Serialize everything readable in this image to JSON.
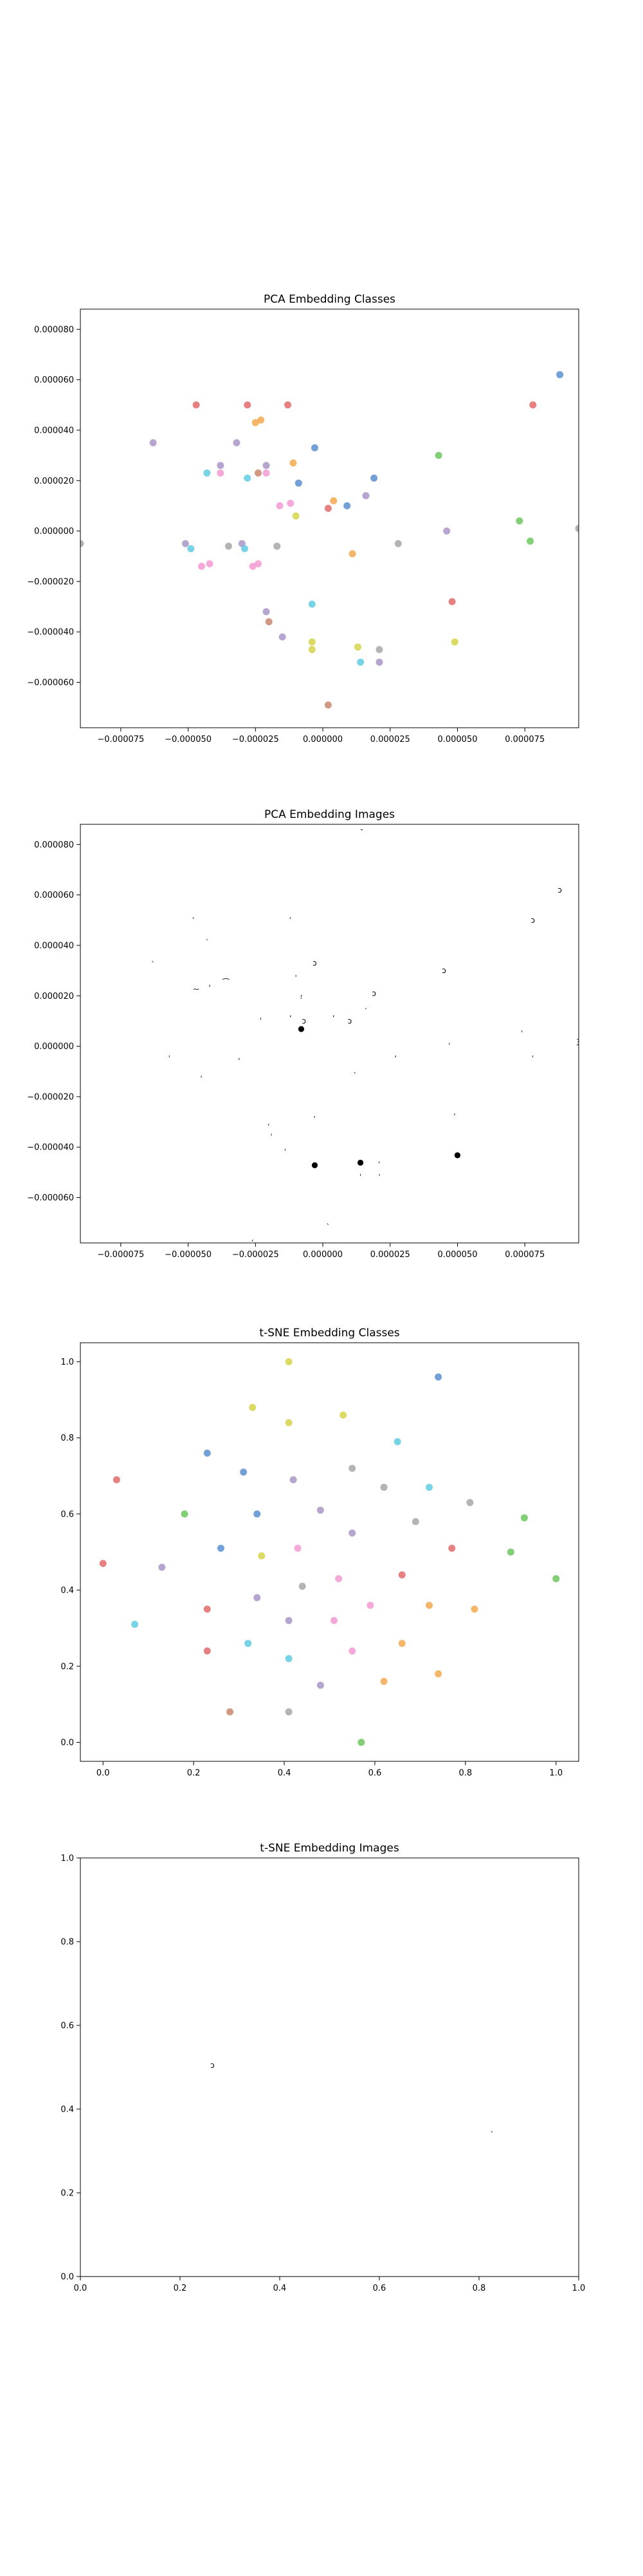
{
  "chart_data": [
    {
      "type": "scatter",
      "title": "PCA Embedding Classes",
      "xlim": [
        -9e-05,
        9.5e-05
      ],
      "ylim": [
        -7.8e-05,
        8.8e-05
      ],
      "xticks": [
        -7.5e-05,
        -5e-05,
        -2.5e-05,
        0,
        2.5e-05,
        5e-05,
        7.5e-05
      ],
      "xtick_labels": [
        "−0.000075",
        "−0.000050",
        "−0.000025",
        "0.000000",
        "0.000025",
        "0.000050",
        "0.000075"
      ],
      "yticks": [
        -6e-05,
        -4e-05,
        -2e-05,
        0,
        2e-05,
        4e-05,
        6e-05,
        8e-05
      ],
      "ytick_labels": [
        "−0.000060",
        "−0.000040",
        "−0.000020",
        "0.000000",
        "0.000020",
        "0.000040",
        "0.000060",
        "0.000080"
      ],
      "points": [
        {
          "x": -2.8e-05,
          "y": 5e-05,
          "c": "#e36a6a"
        },
        {
          "x": -2.5e-05,
          "y": 4.3e-05,
          "c": "#f4a950"
        },
        {
          "x": -2.3e-05,
          "y": 4.4e-05,
          "c": "#f4a950"
        },
        {
          "x": -3.2e-05,
          "y": 3.5e-05,
          "c": "#a995c6"
        },
        {
          "x": -2.8e-05,
          "y": 2.1e-05,
          "c": "#5fcbe0"
        },
        {
          "x": -2.4e-05,
          "y": 2.3e-05,
          "c": "#c9876f"
        },
        {
          "x": -2.1e-05,
          "y": 2.6e-05,
          "c": "#a995c6"
        },
        {
          "x": -2.1e-05,
          "y": 2.3e-05,
          "c": "#f29ad2"
        },
        {
          "x": -3e-05,
          "y": -5e-06,
          "c": "#a995c6"
        },
        {
          "x": -2.9e-05,
          "y": -7e-06,
          "c": "#5fcbe0"
        },
        {
          "x": -2.6e-05,
          "y": -1.4e-05,
          "c": "#f29ad2"
        },
        {
          "x": -2.4e-05,
          "y": -1.3e-05,
          "c": "#f29ad2"
        },
        {
          "x": -1.7e-05,
          "y": -6e-06,
          "c": "#a7a7a7"
        },
        {
          "x": -1.6e-05,
          "y": 1e-05,
          "c": "#f29ad2"
        },
        {
          "x": -2.1e-05,
          "y": -3.2e-05,
          "c": "#a995c6"
        },
        {
          "x": -2e-05,
          "y": -3.6e-05,
          "c": "#c9876f"
        },
        {
          "x": -1.3e-05,
          "y": 5e-05,
          "c": "#e36a6a"
        },
        {
          "x": -1.1e-05,
          "y": 2.7e-05,
          "c": "#f4a950"
        },
        {
          "x": -1.2e-05,
          "y": 1.1e-05,
          "c": "#f29ad2"
        },
        {
          "x": -1e-05,
          "y": 6e-06,
          "c": "#d4d44a"
        },
        {
          "x": -9e-06,
          "y": 1.9e-05,
          "c": "#5a8fd0"
        },
        {
          "x": -3e-06,
          "y": 3.3e-05,
          "c": "#5a8fd0"
        },
        {
          "x": -1.5e-05,
          "y": -4.2e-05,
          "c": "#a995c6"
        },
        {
          "x": -4e-06,
          "y": -2.9e-05,
          "c": "#5fcbe0"
        },
        {
          "x": -4e-06,
          "y": -4.4e-05,
          "c": "#d4d44a"
        },
        {
          "x": -4e-06,
          "y": -4.7e-05,
          "c": "#d4d44a"
        },
        {
          "x": 2e-06,
          "y": 9e-06,
          "c": "#e36a6a"
        },
        {
          "x": 4e-06,
          "y": 1.2e-05,
          "c": "#f4a950"
        },
        {
          "x": 9e-06,
          "y": 1e-05,
          "c": "#5a8fd0"
        },
        {
          "x": 1.1e-05,
          "y": -9e-06,
          "c": "#f4a950"
        },
        {
          "x": 1.6e-05,
          "y": 1.4e-05,
          "c": "#a995c6"
        },
        {
          "x": 1.9e-05,
          "y": 2.1e-05,
          "c": "#5a8fd0"
        },
        {
          "x": 1.3e-05,
          "y": -4.6e-05,
          "c": "#d4d44a"
        },
        {
          "x": 1.4e-05,
          "y": -5.2e-05,
          "c": "#5fcbe0"
        },
        {
          "x": 2.1e-05,
          "y": -4.7e-05,
          "c": "#a7a7a7"
        },
        {
          "x": 2.1e-05,
          "y": -5.2e-05,
          "c": "#a995c6"
        },
        {
          "x": 2e-06,
          "y": -6.9e-05,
          "c": "#c9876f"
        },
        {
          "x": 2.8e-05,
          "y": -5e-06,
          "c": "#a7a7a7"
        },
        {
          "x": 4.3e-05,
          "y": 3e-05,
          "c": "#6cc760"
        },
        {
          "x": 4.6e-05,
          "y": 0.0,
          "c": "#a995c6"
        },
        {
          "x": 4.8e-05,
          "y": -2.8e-05,
          "c": "#e36a6a"
        },
        {
          "x": 4.9e-05,
          "y": -4.4e-05,
          "c": "#d4d44a"
        },
        {
          "x": 7.3e-05,
          "y": 4e-06,
          "c": "#6cc760"
        },
        {
          "x": 7.7e-05,
          "y": -4e-06,
          "c": "#6cc760"
        },
        {
          "x": 7.8e-05,
          "y": 5e-05,
          "c": "#e36a6a"
        },
        {
          "x": 8.8e-05,
          "y": 6.2e-05,
          "c": "#5a8fd0"
        },
        {
          "x": 9.5e-05,
          "y": 1e-06,
          "c": "#a7a7a7"
        },
        {
          "x": -9e-05,
          "y": -5e-06,
          "c": "#a7a7a7"
        },
        {
          "x": -6.3e-05,
          "y": 3.5e-05,
          "c": "#a995c6"
        },
        {
          "x": -4.7e-05,
          "y": 5e-05,
          "c": "#e36a6a"
        },
        {
          "x": -4.3e-05,
          "y": 2.3e-05,
          "c": "#5fcbe0"
        },
        {
          "x": -5.1e-05,
          "y": -5e-06,
          "c": "#a995c6"
        },
        {
          "x": -4.9e-05,
          "y": -7e-06,
          "c": "#5fcbe0"
        },
        {
          "x": -4.5e-05,
          "y": -1.4e-05,
          "c": "#f29ad2"
        },
        {
          "x": -4.2e-05,
          "y": -1.3e-05,
          "c": "#f29ad2"
        },
        {
          "x": -3.5e-05,
          "y": -6e-06,
          "c": "#a7a7a7"
        },
        {
          "x": -3.8e-05,
          "y": 2.3e-05,
          "c": "#f29ad2"
        },
        {
          "x": -3.8e-05,
          "y": 2.6e-05,
          "c": "#a995c6"
        }
      ]
    },
    {
      "type": "scatter",
      "title": "PCA Embedding Images",
      "xlim": [
        -9e-05,
        9.5e-05
      ],
      "ylim": [
        -7.8e-05,
        8.8e-05
      ],
      "xticks": [
        -7.5e-05,
        -5e-05,
        -2.5e-05,
        0,
        2.5e-05,
        5e-05,
        7.5e-05
      ],
      "xtick_labels": [
        "−0.000075",
        "−0.000050",
        "−0.000025",
        "0.000000",
        "0.000025",
        "0.000050",
        "0.000075"
      ],
      "yticks": [
        -6e-05,
        -4e-05,
        -2e-05,
        0,
        2e-05,
        4e-05,
        6e-05,
        8e-05
      ],
      "ytick_labels": [
        "−0.000060",
        "−0.000040",
        "−0.000020",
        "0.000000",
        "0.000020",
        "0.000040",
        "0.000060",
        "0.000080"
      ],
      "glyphs": [
        {
          "x": 1.5e-05,
          "y": 8.6e-05,
          "t": "̵"
        },
        {
          "x": -4.8e-05,
          "y": 5e-05,
          "t": "ʿ"
        },
        {
          "x": -4.3e-05,
          "y": 4.3e-05,
          "t": "․"
        },
        {
          "x": -6.3e-05,
          "y": 3.5e-05,
          "t": "ˎ"
        },
        {
          "x": -4.7e-05,
          "y": 2.1e-05,
          "t": "͠"
        },
        {
          "x": -4.2e-05,
          "y": 2.3e-05,
          "t": "’"
        },
        {
          "x": -3.6e-05,
          "y": 2.5e-05,
          "t": "͡"
        },
        {
          "x": -1.2e-05,
          "y": 5e-05,
          "t": "ʿ"
        },
        {
          "x": -3e-06,
          "y": 3.3e-05,
          "t": "ɔ"
        },
        {
          "x": -1e-05,
          "y": 2.7e-05,
          "t": "ˈ"
        },
        {
          "x": -8e-06,
          "y": 1.9e-05,
          "t": "ʼ"
        },
        {
          "x": -8e-06,
          "y": 1.8e-05,
          "t": "′"
        },
        {
          "x": -7e-06,
          "y": 1e-05,
          "t": "ɔ"
        },
        {
          "x": -2.3e-05,
          "y": 1e-05,
          "t": "ˈ"
        },
        {
          "x": -1.2e-05,
          "y": 1.1e-05,
          "t": "ʼ"
        },
        {
          "x": -8e-06,
          "y": 7e-06,
          "t": "●"
        },
        {
          "x": 4e-06,
          "y": 1.1e-05,
          "t": "ʼ"
        },
        {
          "x": 1e-05,
          "y": 1e-05,
          "t": "ɔ"
        },
        {
          "x": 1.6e-05,
          "y": 1.4e-05,
          "t": "′"
        },
        {
          "x": 1.9e-05,
          "y": 2.1e-05,
          "t": "ɔ"
        },
        {
          "x": 4.5e-05,
          "y": 3e-05,
          "t": "ɔ"
        },
        {
          "x": 4.7e-05,
          "y": 0.0,
          "t": "ʿ"
        },
        {
          "x": 7.4e-05,
          "y": 5e-06,
          "t": "ʿ"
        },
        {
          "x": 7.8e-05,
          "y": 5e-05,
          "t": "ɔ"
        },
        {
          "x": 8.8e-05,
          "y": 6.2e-05,
          "t": "ɔ"
        },
        {
          "x": 9.5e-05,
          "y": 2e-06,
          "t": "ʒ"
        },
        {
          "x": 7.8e-05,
          "y": -5e-06,
          "t": "ʿ"
        },
        {
          "x": -9e-05,
          "y": -5e-06,
          "t": "ʿ"
        },
        {
          "x": -5.7e-05,
          "y": -5e-06,
          "t": "ˈ"
        },
        {
          "x": -4.5e-05,
          "y": -1.3e-05,
          "t": "ʿ"
        },
        {
          "x": -3.1e-05,
          "y": -6e-06,
          "t": "ʿ"
        },
        {
          "x": -2e-05,
          "y": -3.2e-05,
          "t": "ʿ"
        },
        {
          "x": -1.9e-05,
          "y": -3.6e-05,
          "t": "ʿ"
        },
        {
          "x": -1.4e-05,
          "y": -4.2e-05,
          "t": "ˈ"
        },
        {
          "x": -3e-06,
          "y": -2.9e-05,
          "t": "ʿ"
        },
        {
          "x": -3e-06,
          "y": -4.7e-05,
          "t": "●"
        },
        {
          "x": 1.2e-05,
          "y": -9e-06,
          "t": "ˎ"
        },
        {
          "x": 2.7e-05,
          "y": -5e-06,
          "t": "ʼ"
        },
        {
          "x": 1.4e-05,
          "y": -4.6e-05,
          "t": "●"
        },
        {
          "x": 1.4e-05,
          "y": -5.2e-05,
          "t": "ˈ"
        },
        {
          "x": 2.1e-05,
          "y": -4.7e-05,
          "t": "ʿ"
        },
        {
          "x": 2.1e-05,
          "y": -5.2e-05,
          "t": "ˈ"
        },
        {
          "x": 2e-06,
          "y": -6.9e-05,
          "t": "ˎ"
        },
        {
          "x": 4.9e-05,
          "y": -2.8e-05,
          "t": "ʿ"
        },
        {
          "x": 5e-05,
          "y": -4.3e-05,
          "t": "●"
        },
        {
          "x": -2.6e-05,
          "y": -7.8e-05,
          "t": "ʿ"
        }
      ]
    },
    {
      "type": "scatter",
      "title": "t-SNE Embedding Classes",
      "xlim": [
        -0.05,
        1.05
      ],
      "ylim": [
        -0.05,
        1.05
      ],
      "xticks": [
        0.0,
        0.2,
        0.4,
        0.6,
        0.8,
        1.0
      ],
      "xtick_labels": [
        "0.0",
        "0.2",
        "0.4",
        "0.6",
        "0.8",
        "1.0"
      ],
      "yticks": [
        0.0,
        0.2,
        0.4,
        0.6,
        0.8,
        1.0
      ],
      "ytick_labels": [
        "0.0",
        "0.2",
        "0.4",
        "0.6",
        "0.8",
        "1.0"
      ],
      "points": [
        {
          "x": 0.0,
          "y": 0.47,
          "c": "#e36a6a"
        },
        {
          "x": 0.03,
          "y": 0.69,
          "c": "#e36a6a"
        },
        {
          "x": 0.07,
          "y": 0.31,
          "c": "#5fcbe0"
        },
        {
          "x": 0.13,
          "y": 0.46,
          "c": "#a995c6"
        },
        {
          "x": 0.18,
          "y": 0.6,
          "c": "#6cc760"
        },
        {
          "x": 0.23,
          "y": 0.76,
          "c": "#5a8fd0"
        },
        {
          "x": 0.23,
          "y": 0.35,
          "c": "#e36a6a"
        },
        {
          "x": 0.23,
          "y": 0.24,
          "c": "#e36a6a"
        },
        {
          "x": 0.26,
          "y": 0.51,
          "c": "#5a8fd0"
        },
        {
          "x": 0.28,
          "y": 0.08,
          "c": "#c9876f"
        },
        {
          "x": 0.31,
          "y": 0.71,
          "c": "#5a8fd0"
        },
        {
          "x": 0.32,
          "y": 0.26,
          "c": "#5fcbe0"
        },
        {
          "x": 0.33,
          "y": 0.88,
          "c": "#d4d44a"
        },
        {
          "x": 0.34,
          "y": 0.6,
          "c": "#5a8fd0"
        },
        {
          "x": 0.34,
          "y": 0.38,
          "c": "#a995c6"
        },
        {
          "x": 0.35,
          "y": 0.49,
          "c": "#d4d44a"
        },
        {
          "x": 0.41,
          "y": 1.0,
          "c": "#d4d44a"
        },
        {
          "x": 0.41,
          "y": 0.84,
          "c": "#d4d44a"
        },
        {
          "x": 0.42,
          "y": 0.69,
          "c": "#a995c6"
        },
        {
          "x": 0.43,
          "y": 0.51,
          "c": "#f29ad2"
        },
        {
          "x": 0.44,
          "y": 0.41,
          "c": "#a7a7a7"
        },
        {
          "x": 0.41,
          "y": 0.32,
          "c": "#a995c6"
        },
        {
          "x": 0.41,
          "y": 0.22,
          "c": "#5fcbe0"
        },
        {
          "x": 0.41,
          "y": 0.08,
          "c": "#a7a7a7"
        },
        {
          "x": 0.48,
          "y": 0.61,
          "c": "#a995c6"
        },
        {
          "x": 0.48,
          "y": 0.15,
          "c": "#a995c6"
        },
        {
          "x": 0.51,
          "y": 0.32,
          "c": "#f29ad2"
        },
        {
          "x": 0.52,
          "y": 0.43,
          "c": "#f29ad2"
        },
        {
          "x": 0.53,
          "y": 0.86,
          "c": "#d4d44a"
        },
        {
          "x": 0.55,
          "y": 0.72,
          "c": "#a7a7a7"
        },
        {
          "x": 0.55,
          "y": 0.55,
          "c": "#a995c6"
        },
        {
          "x": 0.55,
          "y": 0.24,
          "c": "#f29ad2"
        },
        {
          "x": 0.57,
          "y": 0.0,
          "c": "#6cc760"
        },
        {
          "x": 0.59,
          "y": 0.36,
          "c": "#f29ad2"
        },
        {
          "x": 0.62,
          "y": 0.67,
          "c": "#a7a7a7"
        },
        {
          "x": 0.62,
          "y": 0.16,
          "c": "#f4a950"
        },
        {
          "x": 0.65,
          "y": 0.79,
          "c": "#5fcbe0"
        },
        {
          "x": 0.66,
          "y": 0.44,
          "c": "#e36a6a"
        },
        {
          "x": 0.66,
          "y": 0.26,
          "c": "#f4a950"
        },
        {
          "x": 0.69,
          "y": 0.58,
          "c": "#a7a7a7"
        },
        {
          "x": 0.72,
          "y": 0.67,
          "c": "#5fcbe0"
        },
        {
          "x": 0.72,
          "y": 0.36,
          "c": "#f4a950"
        },
        {
          "x": 0.74,
          "y": 0.96,
          "c": "#5a8fd0"
        },
        {
          "x": 0.74,
          "y": 0.18,
          "c": "#f4a950"
        },
        {
          "x": 0.77,
          "y": 0.51,
          "c": "#e36a6a"
        },
        {
          "x": 0.81,
          "y": 0.63,
          "c": "#a7a7a7"
        },
        {
          "x": 0.82,
          "y": 0.35,
          "c": "#f4a950"
        },
        {
          "x": 0.9,
          "y": 0.5,
          "c": "#6cc760"
        },
        {
          "x": 0.93,
          "y": 0.59,
          "c": "#6cc760"
        },
        {
          "x": 1.0,
          "y": 0.43,
          "c": "#6cc760"
        }
      ]
    },
    {
      "type": "scatter",
      "title": "t-SNE Embedding Images",
      "xlim": [
        0.0,
        1.0
      ],
      "ylim": [
        0.0,
        1.0
      ],
      "xticks": [
        0.0,
        0.2,
        0.4,
        0.6,
        0.8,
        1.0
      ],
      "xtick_labels": [
        "0.0",
        "0.2",
        "0.4",
        "0.6",
        "0.8",
        "1.0"
      ],
      "yticks": [
        0.0,
        0.2,
        0.4,
        0.6,
        0.8,
        1.0
      ],
      "ytick_labels": [
        "0.0",
        "0.2",
        "0.4",
        "0.6",
        "0.8",
        "1.0"
      ],
      "glyphs": [
        {
          "x": 0.265,
          "y": 0.505,
          "t": "ɔ"
        },
        {
          "x": 0.825,
          "y": 0.355,
          "t": "ˏ"
        }
      ]
    }
  ]
}
